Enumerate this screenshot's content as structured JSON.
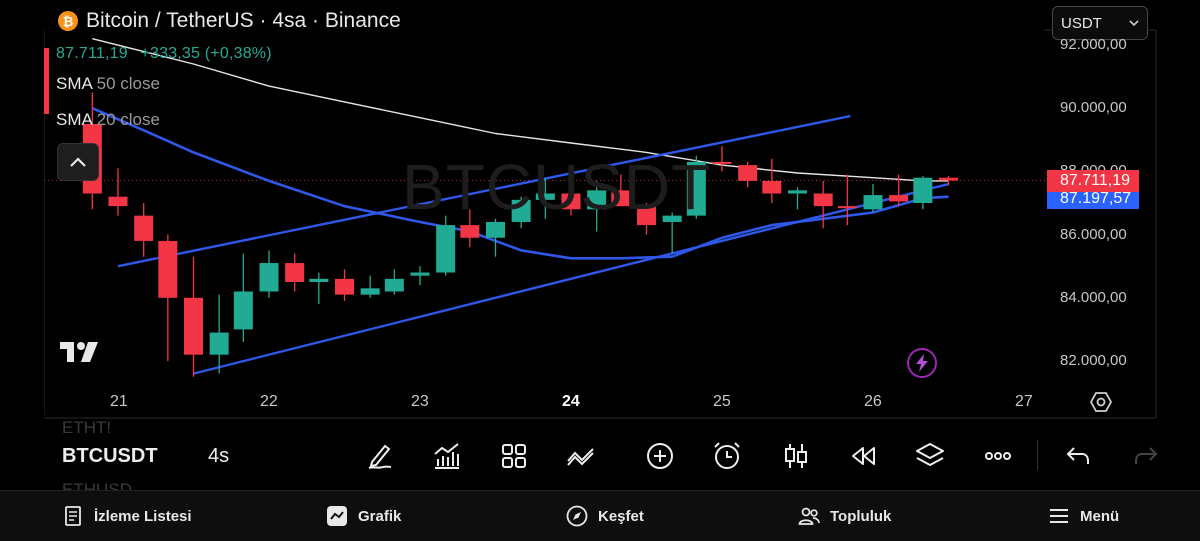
{
  "header": {
    "title": "Bitcoin / TetherUS · 4sa · Binance",
    "coin_icon": "bitcoin-icon",
    "price": "87.711,19",
    "change": "+333,35 (+0,38%)",
    "indicator1": {
      "name": "SMA",
      "params": "50 close"
    },
    "indicator2": {
      "name": "SMA",
      "params": "20 close"
    },
    "currency": "USDT"
  },
  "watermark": "BTCUSDT",
  "y_axis": {
    "labels": [
      "92.000,00",
      "90.000,00",
      "88.000,00",
      "86.000,00",
      "84.000,00",
      "82.000,00"
    ],
    "last_price_tag": "87.711,19",
    "sma_tag": "87.197,57"
  },
  "x_axis": {
    "labels": [
      "21",
      "22",
      "23",
      "24",
      "25",
      "26",
      "27"
    ],
    "bold_label": "24"
  },
  "toolbar": {
    "symbol": "BTCUSDT",
    "timeframe": "4s",
    "ghost_above": "ETHT!",
    "ghost_below": "ETHUSD"
  },
  "bottom_nav": {
    "watchlist": "İzleme Listesi",
    "chart": "Grafik",
    "explore": "Keşfet",
    "community": "Topluluk",
    "menu": "Menü"
  },
  "colors": {
    "up": "#22ab94",
    "down": "#f23645",
    "sma50": "#e6e6e6",
    "sma20": "#2f57e8",
    "trendline": "#2f57e8"
  },
  "chart_data": {
    "type": "candlestick",
    "title": "Bitcoin / TetherUS · 4sa · Binance",
    "ylim": [
      81000,
      92500
    ],
    "x_range": [
      20.8,
      27.05
    ],
    "candles": [
      {
        "t": 20.83,
        "o": 89500,
        "h": 90500,
        "l": 86800,
        "c": 87300
      },
      {
        "t": 21.0,
        "o": 87200,
        "h": 88100,
        "l": 86600,
        "c": 86900
      },
      {
        "t": 21.17,
        "o": 86600,
        "h": 87000,
        "l": 85300,
        "c": 85800
      },
      {
        "t": 21.33,
        "o": 85800,
        "h": 86000,
        "l": 82000,
        "c": 84000
      },
      {
        "t": 21.5,
        "o": 84000,
        "h": 85300,
        "l": 81500,
        "c": 82200
      },
      {
        "t": 21.67,
        "o": 82200,
        "h": 84100,
        "l": 81600,
        "c": 82900
      },
      {
        "t": 21.83,
        "o": 83000,
        "h": 85400,
        "l": 82600,
        "c": 84200
      },
      {
        "t": 22.0,
        "o": 84200,
        "h": 85500,
        "l": 84000,
        "c": 85100
      },
      {
        "t": 22.17,
        "o": 85100,
        "h": 85400,
        "l": 84200,
        "c": 84500
      },
      {
        "t": 22.33,
        "o": 84500,
        "h": 84800,
        "l": 83800,
        "c": 84600
      },
      {
        "t": 22.5,
        "o": 84600,
        "h": 84900,
        "l": 83900,
        "c": 84100
      },
      {
        "t": 22.67,
        "o": 84100,
        "h": 84700,
        "l": 84000,
        "c": 84300
      },
      {
        "t": 22.83,
        "o": 84200,
        "h": 84900,
        "l": 84100,
        "c": 84600
      },
      {
        "t": 23.0,
        "o": 84700,
        "h": 85000,
        "l": 84400,
        "c": 84800
      },
      {
        "t": 23.17,
        "o": 84800,
        "h": 86600,
        "l": 84700,
        "c": 86300
      },
      {
        "t": 23.33,
        "o": 86300,
        "h": 86800,
        "l": 85600,
        "c": 85900
      },
      {
        "t": 23.5,
        "o": 85900,
        "h": 86500,
        "l": 85300,
        "c": 86400
      },
      {
        "t": 23.67,
        "o": 86400,
        "h": 87200,
        "l": 86200,
        "c": 87100
      },
      {
        "t": 23.83,
        "o": 87100,
        "h": 87800,
        "l": 86500,
        "c": 87300
      },
      {
        "t": 24.0,
        "o": 87300,
        "h": 87500,
        "l": 86600,
        "c": 86800
      },
      {
        "t": 24.17,
        "o": 86800,
        "h": 87700,
        "l": 86100,
        "c": 87400
      },
      {
        "t": 24.33,
        "o": 87400,
        "h": 87900,
        "l": 86900,
        "c": 86900
      },
      {
        "t": 24.5,
        "o": 86900,
        "h": 87000,
        "l": 86000,
        "c": 86300
      },
      {
        "t": 24.67,
        "o": 86400,
        "h": 86700,
        "l": 85400,
        "c": 86600
      },
      {
        "t": 24.83,
        "o": 86600,
        "h": 88500,
        "l": 86500,
        "c": 88300
      },
      {
        "t": 25.0,
        "o": 88300,
        "h": 88800,
        "l": 88000,
        "c": 88250
      },
      {
        "t": 25.17,
        "o": 88200,
        "h": 88300,
        "l": 87500,
        "c": 87700
      },
      {
        "t": 25.33,
        "o": 87700,
        "h": 88400,
        "l": 87000,
        "c": 87300
      },
      {
        "t": 25.5,
        "o": 87300,
        "h": 87500,
        "l": 86800,
        "c": 87400
      },
      {
        "t": 25.67,
        "o": 87300,
        "h": 87700,
        "l": 86200,
        "c": 86900
      },
      {
        "t": 25.83,
        "o": 86900,
        "h": 87900,
        "l": 86300,
        "c": 86850
      },
      {
        "t": 26.0,
        "o": 86800,
        "h": 87600,
        "l": 86700,
        "c": 87250
      },
      {
        "t": 26.17,
        "o": 87250,
        "h": 87900,
        "l": 86900,
        "c": 87050
      },
      {
        "t": 26.33,
        "o": 87000,
        "h": 87850,
        "l": 86800,
        "c": 87800
      },
      {
        "t": 26.5,
        "o": 87800,
        "h": 87850,
        "l": 87550,
        "c": 87711
      }
    ],
    "series": [
      {
        "name": "SMA 50 close",
        "x": [
          20.83,
          21.5,
          22.0,
          22.5,
          23.0,
          23.5,
          24.0,
          24.5,
          25.0,
          25.5,
          26.0,
          26.33,
          26.5
        ],
        "y": [
          92200,
          91400,
          90700,
          90200,
          89700,
          89200,
          88900,
          88600,
          88200,
          87950,
          87800,
          87700,
          87700
        ]
      },
      {
        "name": "SMA 20 close",
        "x": [
          20.83,
          21.17,
          21.5,
          22.0,
          22.5,
          23.0,
          23.33,
          23.67,
          24.0,
          24.33,
          24.67,
          25.0,
          25.33,
          25.67,
          26.0,
          26.33,
          26.5
        ],
        "y": [
          90000,
          89300,
          88600,
          87700,
          86900,
          86400,
          86100,
          85500,
          85250,
          85250,
          85300,
          85900,
          86300,
          86500,
          86700,
          87150,
          87200
        ]
      }
    ],
    "trendlines": [
      {
        "x": [
          21.0,
          25.85
        ],
        "y": [
          85000,
          89750
        ]
      },
      {
        "x": [
          21.5,
          26.5
        ],
        "y": [
          81600,
          87600
        ]
      }
    ],
    "last_price": 87711.19,
    "sma_value": 87197.57,
    "y_ticks": [
      92000,
      90000,
      88000,
      86000,
      84000,
      82000
    ],
    "x_ticks": [
      "21",
      "22",
      "23",
      "24",
      "25",
      "26",
      "27"
    ]
  }
}
